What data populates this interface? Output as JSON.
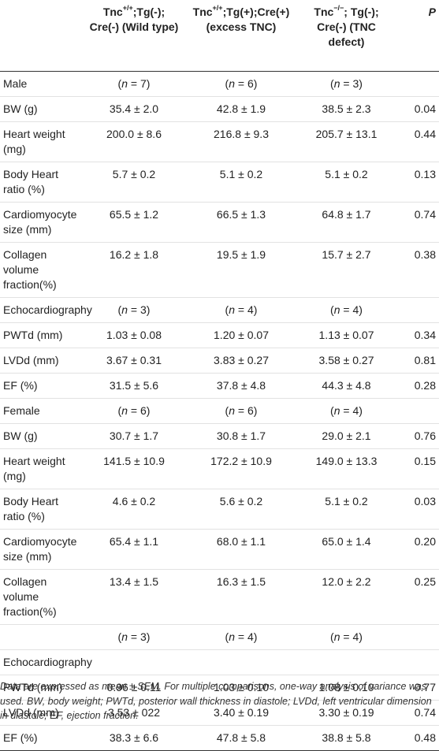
{
  "header": {
    "col1": {
      "base": "Tnc",
      "sup": "+/+",
      "rest": ";Tg(-);",
      "line2": "Cre(-) (Wild type)"
    },
    "col2": {
      "base": "Tnc",
      "sup": "+/+",
      "rest": ";Tg(+);Cre(+)",
      "line2": "(excess TNC)"
    },
    "col3": {
      "base": "Tnc",
      "sup": "−/−",
      "rest": "; Tg(-);",
      "line2": "Cre(-) (TNC",
      "line3": "defect)"
    },
    "col4": "P"
  },
  "rows": [
    {
      "type": "n",
      "label": "Male",
      "n1": "7",
      "n2": "6",
      "n3": "3"
    },
    {
      "type": "d",
      "label": "BW (g)",
      "v1": "35.4 ± 2.0",
      "v2": "42.8 ± 1.9",
      "v3": "38.5 ± 2.3",
      "p": "0.04"
    },
    {
      "type": "d",
      "label": "Heart weight (mg)",
      "v1": "200.0 ± 8.6",
      "v2": "216.8 ± 9.3",
      "v3": "205.7 ± 13.1",
      "p": "0.44"
    },
    {
      "type": "d",
      "label": "Body Heart ratio (%)",
      "v1": "5.7 ± 0.2",
      "v2": "5.1 ± 0.2",
      "v3": "5.1 ± 0.2",
      "p": "0.13"
    },
    {
      "type": "d",
      "label": "Cardiomyocyte size (mm)",
      "v1": "65.5 ± 1.2",
      "v2": "66.5 ± 1.3",
      "v3": "64.8 ± 1.7",
      "p": "0.74"
    },
    {
      "type": "d",
      "label": "Collagen volume fraction(%)",
      "v1": "16.2 ± 1.8",
      "v2": "19.5 ± 1.9",
      "v3": "15.7 ± 2.7",
      "p": "0.38"
    },
    {
      "type": "n",
      "label": "Echocardiography",
      "n1": "3",
      "n2": "4",
      "n3": "4"
    },
    {
      "type": "d",
      "label": "PWTd (mm)",
      "v1": "1.03 ± 0.08",
      "v2": "1.20 ± 0.07",
      "v3": "1.13 ± 0.07",
      "p": "0.34"
    },
    {
      "type": "d",
      "label": "LVDd (mm)",
      "v1": "3.67 ± 0.31",
      "v2": "3.83 ± 0.27",
      "v3": "3.58 ± 0.27",
      "p": "0.81"
    },
    {
      "type": "d",
      "label": "EF (%)",
      "v1": "31.5 ± 5.6",
      "v2": "37.8 ± 4.8",
      "v3": "44.3 ± 4.8",
      "p": "0.28"
    },
    {
      "type": "n",
      "label": "Female",
      "n1": "6",
      "n2": "6",
      "n3": "4"
    },
    {
      "type": "d",
      "label": "BW (g)",
      "v1": "30.7 ± 1.7",
      "v2": "30.8 ± 1.7",
      "v3": "29.0 ± 2.1",
      "p": "0.76"
    },
    {
      "type": "d",
      "label": "Heart weight (mg)",
      "v1": "141.5 ± 10.9",
      "v2": "172.2 ± 10.9",
      "v3": "149.0 ± 13.3",
      "p": "0.15"
    },
    {
      "type": "d",
      "label": "Body Heart ratio (%)",
      "v1": "4.6 ± 0.2",
      "v2": "5.6 ± 0.2",
      "v3": "5.1 ± 0.2",
      "p": "0.03"
    },
    {
      "type": "d",
      "label": "Cardiomyocyte size (mm)",
      "v1": "65.4 ± 1.1",
      "v2": "68.0 ± 1.1",
      "v3": "65.0 ± 1.4",
      "p": "0.20"
    },
    {
      "type": "d",
      "label": "Collagen volume fraction(%)",
      "v1": "13.4 ± 1.5",
      "v2": "16.3 ± 1.5",
      "v3": "12.0 ± 2.2",
      "p": "0.25"
    },
    {
      "type": "n",
      "label": "",
      "n1": "3",
      "n2": "4",
      "n3": "4"
    },
    {
      "type": "d",
      "label": "Echocardiography",
      "v1": "",
      "v2": "",
      "v3": "",
      "p": ""
    },
    {
      "type": "d",
      "label": "PWTd (mm)",
      "v1": "0.96 ± 0.11",
      "v2": "1.03 ± 0.10",
      "v3": "1.08 ± 0.10",
      "p": "0.77"
    },
    {
      "type": "d",
      "label": "LVDd (mm)",
      "v1": "3.53 ± 022",
      "v2": "3.40 ± 0.19",
      "v3": "3.30 ± 0.19",
      "p": "0.74"
    },
    {
      "type": "d",
      "label": "EF (%)",
      "v1": "38.3 ± 6.6",
      "v2": "47.8 ± 5.8",
      "v3": "38.8 ± 5.8",
      "p": "0.48"
    }
  ],
  "n_prefix": "n",
  "n_sep": " = ",
  "footnote": "Data are expressed as mean ± SEM. For multiple comparisons, one-way analysis of variance was used. BW, body weight; PWTd, posterior wall thickness in diastole; LVDd, left ventricular dimension in diastole; EF, ejection fraction."
}
